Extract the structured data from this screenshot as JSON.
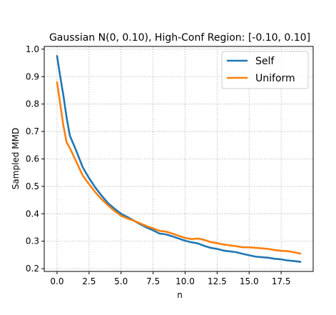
{
  "chart_data": {
    "type": "line",
    "title": "Gaussian N(0, 0.10), High-Conf Region: [-0.10, 0.10]",
    "xlabel": "n",
    "ylabel": "Sampled MMD",
    "xlim": [
      -1,
      20
    ],
    "ylim": [
      0.19,
      1.01
    ],
    "xticks": [
      0.0,
      2.5,
      5.0,
      7.5,
      10.0,
      12.5,
      15.0,
      17.5
    ],
    "xtick_labels": [
      "0.0",
      "2.5",
      "5.0",
      "7.5",
      "10.0",
      "12.5",
      "15.0",
      "17.5"
    ],
    "yticks": [
      0.2,
      0.3,
      0.4,
      0.5,
      0.6,
      0.7,
      0.8,
      0.9,
      1.0
    ],
    "ytick_labels": [
      "0.2",
      "0.3",
      "0.4",
      "0.5",
      "0.6",
      "0.7",
      "0.8",
      "0.9",
      "1.0"
    ],
    "grid": true,
    "legend_position": "top-right",
    "series": [
      {
        "name": "Self",
        "color": "#1f77b4",
        "x": [
          0,
          0.25,
          0.5,
          0.75,
          1,
          1.5,
          2,
          2.5,
          3,
          3.5,
          4,
          4.5,
          5,
          5.5,
          6,
          6.5,
          7,
          7.5,
          8,
          8.5,
          9,
          9.5,
          10,
          10.5,
          11,
          11.5,
          12,
          12.5,
          13,
          13.5,
          14,
          14.5,
          15,
          15.5,
          16,
          16.5,
          17,
          17.5,
          18,
          18.5,
          19
        ],
        "y": [
          0.975,
          0.9,
          0.83,
          0.75,
          0.685,
          0.63,
          0.57,
          0.53,
          0.495,
          0.465,
          0.438,
          0.418,
          0.4,
          0.388,
          0.375,
          0.362,
          0.35,
          0.34,
          0.328,
          0.325,
          0.318,
          0.31,
          0.302,
          0.296,
          0.292,
          0.283,
          0.276,
          0.272,
          0.266,
          0.263,
          0.26,
          0.254,
          0.249,
          0.244,
          0.242,
          0.24,
          0.236,
          0.234,
          0.23,
          0.228,
          0.225
        ]
      },
      {
        "name": "Uniform",
        "color": "#ff7f0e",
        "x": [
          0,
          0.25,
          0.5,
          0.75,
          1,
          1.5,
          2,
          2.5,
          3,
          3.5,
          4,
          4.5,
          5,
          5.5,
          6,
          6.5,
          7,
          7.5,
          8,
          8.5,
          9,
          9.5,
          10,
          10.5,
          11,
          11.5,
          12,
          12.5,
          13,
          13.5,
          14,
          14.5,
          15,
          15.5,
          16,
          16.5,
          17,
          17.5,
          18,
          18.5,
          19
        ],
        "y": [
          0.88,
          0.8,
          0.72,
          0.66,
          0.64,
          0.59,
          0.54,
          0.508,
          0.478,
          0.452,
          0.43,
          0.41,
          0.393,
          0.383,
          0.375,
          0.365,
          0.355,
          0.347,
          0.338,
          0.335,
          0.328,
          0.32,
          0.312,
          0.308,
          0.31,
          0.305,
          0.297,
          0.293,
          0.288,
          0.285,
          0.282,
          0.278,
          0.278,
          0.276,
          0.274,
          0.272,
          0.268,
          0.265,
          0.264,
          0.26,
          0.255
        ]
      }
    ]
  }
}
